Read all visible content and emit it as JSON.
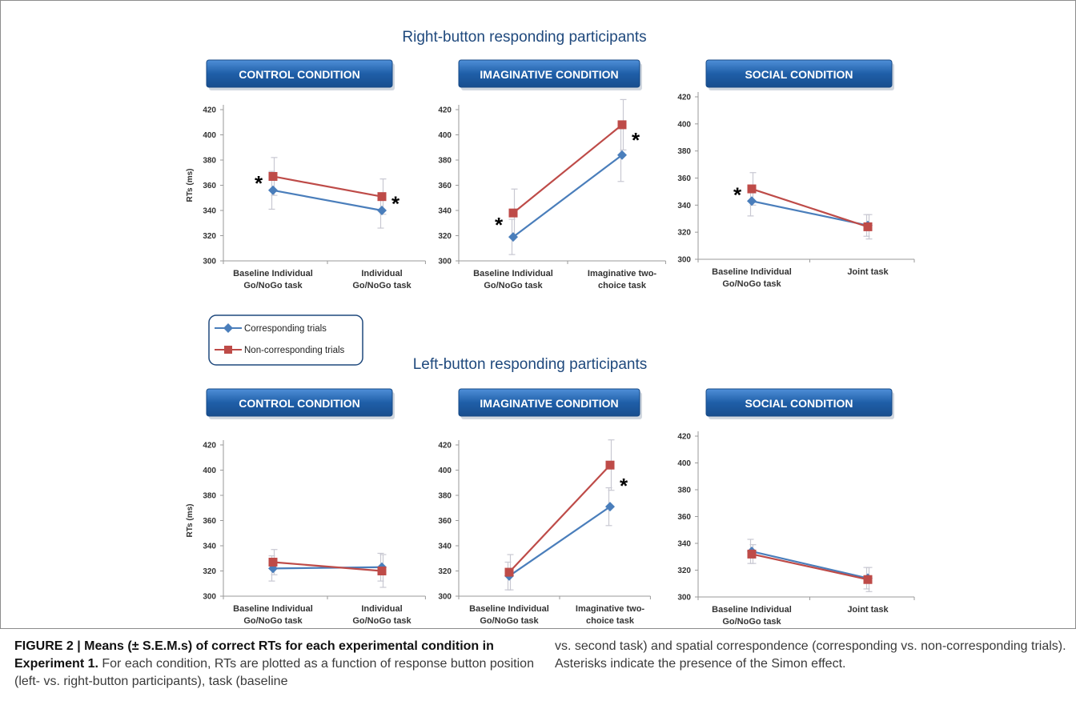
{
  "colors": {
    "corresponding": "#4a7ebb",
    "non_corresponding": "#be4b48",
    "section_title": "#1f497d",
    "panel_header": "#1f5fa8",
    "error_bar": "#c8c8d2"
  },
  "sections": {
    "right": {
      "title": "Right-button responding participants"
    },
    "left": {
      "title": "Left-button responding participants"
    }
  },
  "legend": {
    "corresponding": "Corresponding trials",
    "non_corresponding": "Non-corresponding trials"
  },
  "caption": {
    "bold": "FIGURE 2 | Means (± S.E.M.s) of correct RTs for each experimental condition in Experiment 1.",
    "text_left": " For each condition, RTs are plotted as a function of response button position (left- vs. right-button participants), task (baseline",
    "text_right": "vs. second task) and spatial correspondence (corresponding vs. non-corresponding trials). Asterisks indicate the presence of the Simon effect."
  },
  "chart_data": [
    {
      "type": "line",
      "section": "Right-button responding participants",
      "title": "CONTROL CONDITION",
      "ylabel": "RTs (ms)",
      "ylim": [
        300,
        420
      ],
      "yticks": [
        300,
        320,
        340,
        360,
        380,
        400,
        420
      ],
      "categories": [
        [
          "Baseline Individual",
          "Go/NoGo task"
        ],
        [
          "Individual",
          "Go/NoGo task"
        ]
      ],
      "series": [
        {
          "name": "Corresponding trials",
          "values": [
            356,
            340
          ],
          "errors": [
            15,
            14
          ]
        },
        {
          "name": "Non-corresponding trials",
          "values": [
            367,
            351
          ],
          "errors": [
            15,
            14
          ]
        }
      ],
      "asterisks": [
        0,
        1
      ]
    },
    {
      "type": "line",
      "section": "Right-button responding participants",
      "title": "IMAGINATIVE CONDITION",
      "ylabel": "",
      "ylim": [
        300,
        420
      ],
      "yticks": [
        300,
        320,
        340,
        360,
        380,
        400,
        420
      ],
      "categories": [
        [
          "Baseline Individual",
          "Go/NoGo task"
        ],
        [
          "Imaginative two-",
          "choice task"
        ]
      ],
      "series": [
        {
          "name": "Corresponding trials",
          "values": [
            319,
            384
          ],
          "errors": [
            14,
            21
          ]
        },
        {
          "name": "Non-corresponding trials",
          "values": [
            338,
            408
          ],
          "errors": [
            19,
            20
          ]
        }
      ],
      "asterisks": [
        0,
        1
      ]
    },
    {
      "type": "line",
      "section": "Right-button responding participants",
      "title": "SOCIAL  CONDITION",
      "ylabel": "",
      "ylim": [
        300,
        420
      ],
      "yticks": [
        300,
        320,
        340,
        360,
        380,
        400,
        420
      ],
      "categories": [
        [
          "Baseline Individual",
          "Go/NoGo task"
        ],
        [
          "Joint task",
          ""
        ]
      ],
      "series": [
        {
          "name": "Corresponding trials",
          "values": [
            343,
            325
          ],
          "errors": [
            11,
            8
          ]
        },
        {
          "name": "Non-corresponding trials",
          "values": [
            352,
            324
          ],
          "errors": [
            12,
            9
          ]
        }
      ],
      "asterisks": [
        0
      ]
    },
    {
      "type": "line",
      "section": "Left-button responding participants",
      "title": "CONTROL CONDITION",
      "ylabel": "RTs (ms)",
      "ylim": [
        300,
        420
      ],
      "yticks": [
        300,
        320,
        340,
        360,
        380,
        400,
        420
      ],
      "categories": [
        [
          "Baseline Individual",
          "Go/NoGo task"
        ],
        [
          "Individual",
          "Go/NoGo task"
        ]
      ],
      "series": [
        {
          "name": "Corresponding trials",
          "values": [
            322,
            323
          ],
          "errors": [
            10,
            11
          ]
        },
        {
          "name": "Non-corresponding trials",
          "values": [
            327,
            320
          ],
          "errors": [
            10,
            13
          ]
        }
      ],
      "asterisks": []
    },
    {
      "type": "line",
      "section": "Left-button responding participants",
      "title": "IMAGINATIVE CONDITION",
      "ylabel": "",
      "ylim": [
        300,
        420
      ],
      "yticks": [
        300,
        320,
        340,
        360,
        380,
        400,
        420
      ],
      "categories": [
        [
          "Baseline Individual",
          "Go/NoGo task"
        ],
        [
          "Imaginative two-",
          "choice task"
        ]
      ],
      "series": [
        {
          "name": "Corresponding trials",
          "values": [
            316,
            371
          ],
          "errors": [
            11,
            15
          ]
        },
        {
          "name": "Non-corresponding trials",
          "values": [
            319,
            404
          ],
          "errors": [
            14,
            20
          ]
        }
      ],
      "asterisks": [
        1
      ]
    },
    {
      "type": "line",
      "section": "Left-button responding participants",
      "title": "SOCIAL  CONDITION",
      "ylabel": "",
      "ylim": [
        300,
        420
      ],
      "yticks": [
        300,
        320,
        340,
        360,
        380,
        400,
        420
      ],
      "categories": [
        [
          "Baseline Individual",
          "Go/NoGo task"
        ],
        [
          "Joint task",
          ""
        ]
      ],
      "series": [
        {
          "name": "Corresponding trials",
          "values": [
            334,
            314
          ],
          "errors": [
            9,
            8
          ]
        },
        {
          "name": "Non-corresponding trials",
          "values": [
            332,
            313
          ],
          "errors": [
            7,
            9
          ]
        }
      ],
      "asterisks": []
    }
  ]
}
